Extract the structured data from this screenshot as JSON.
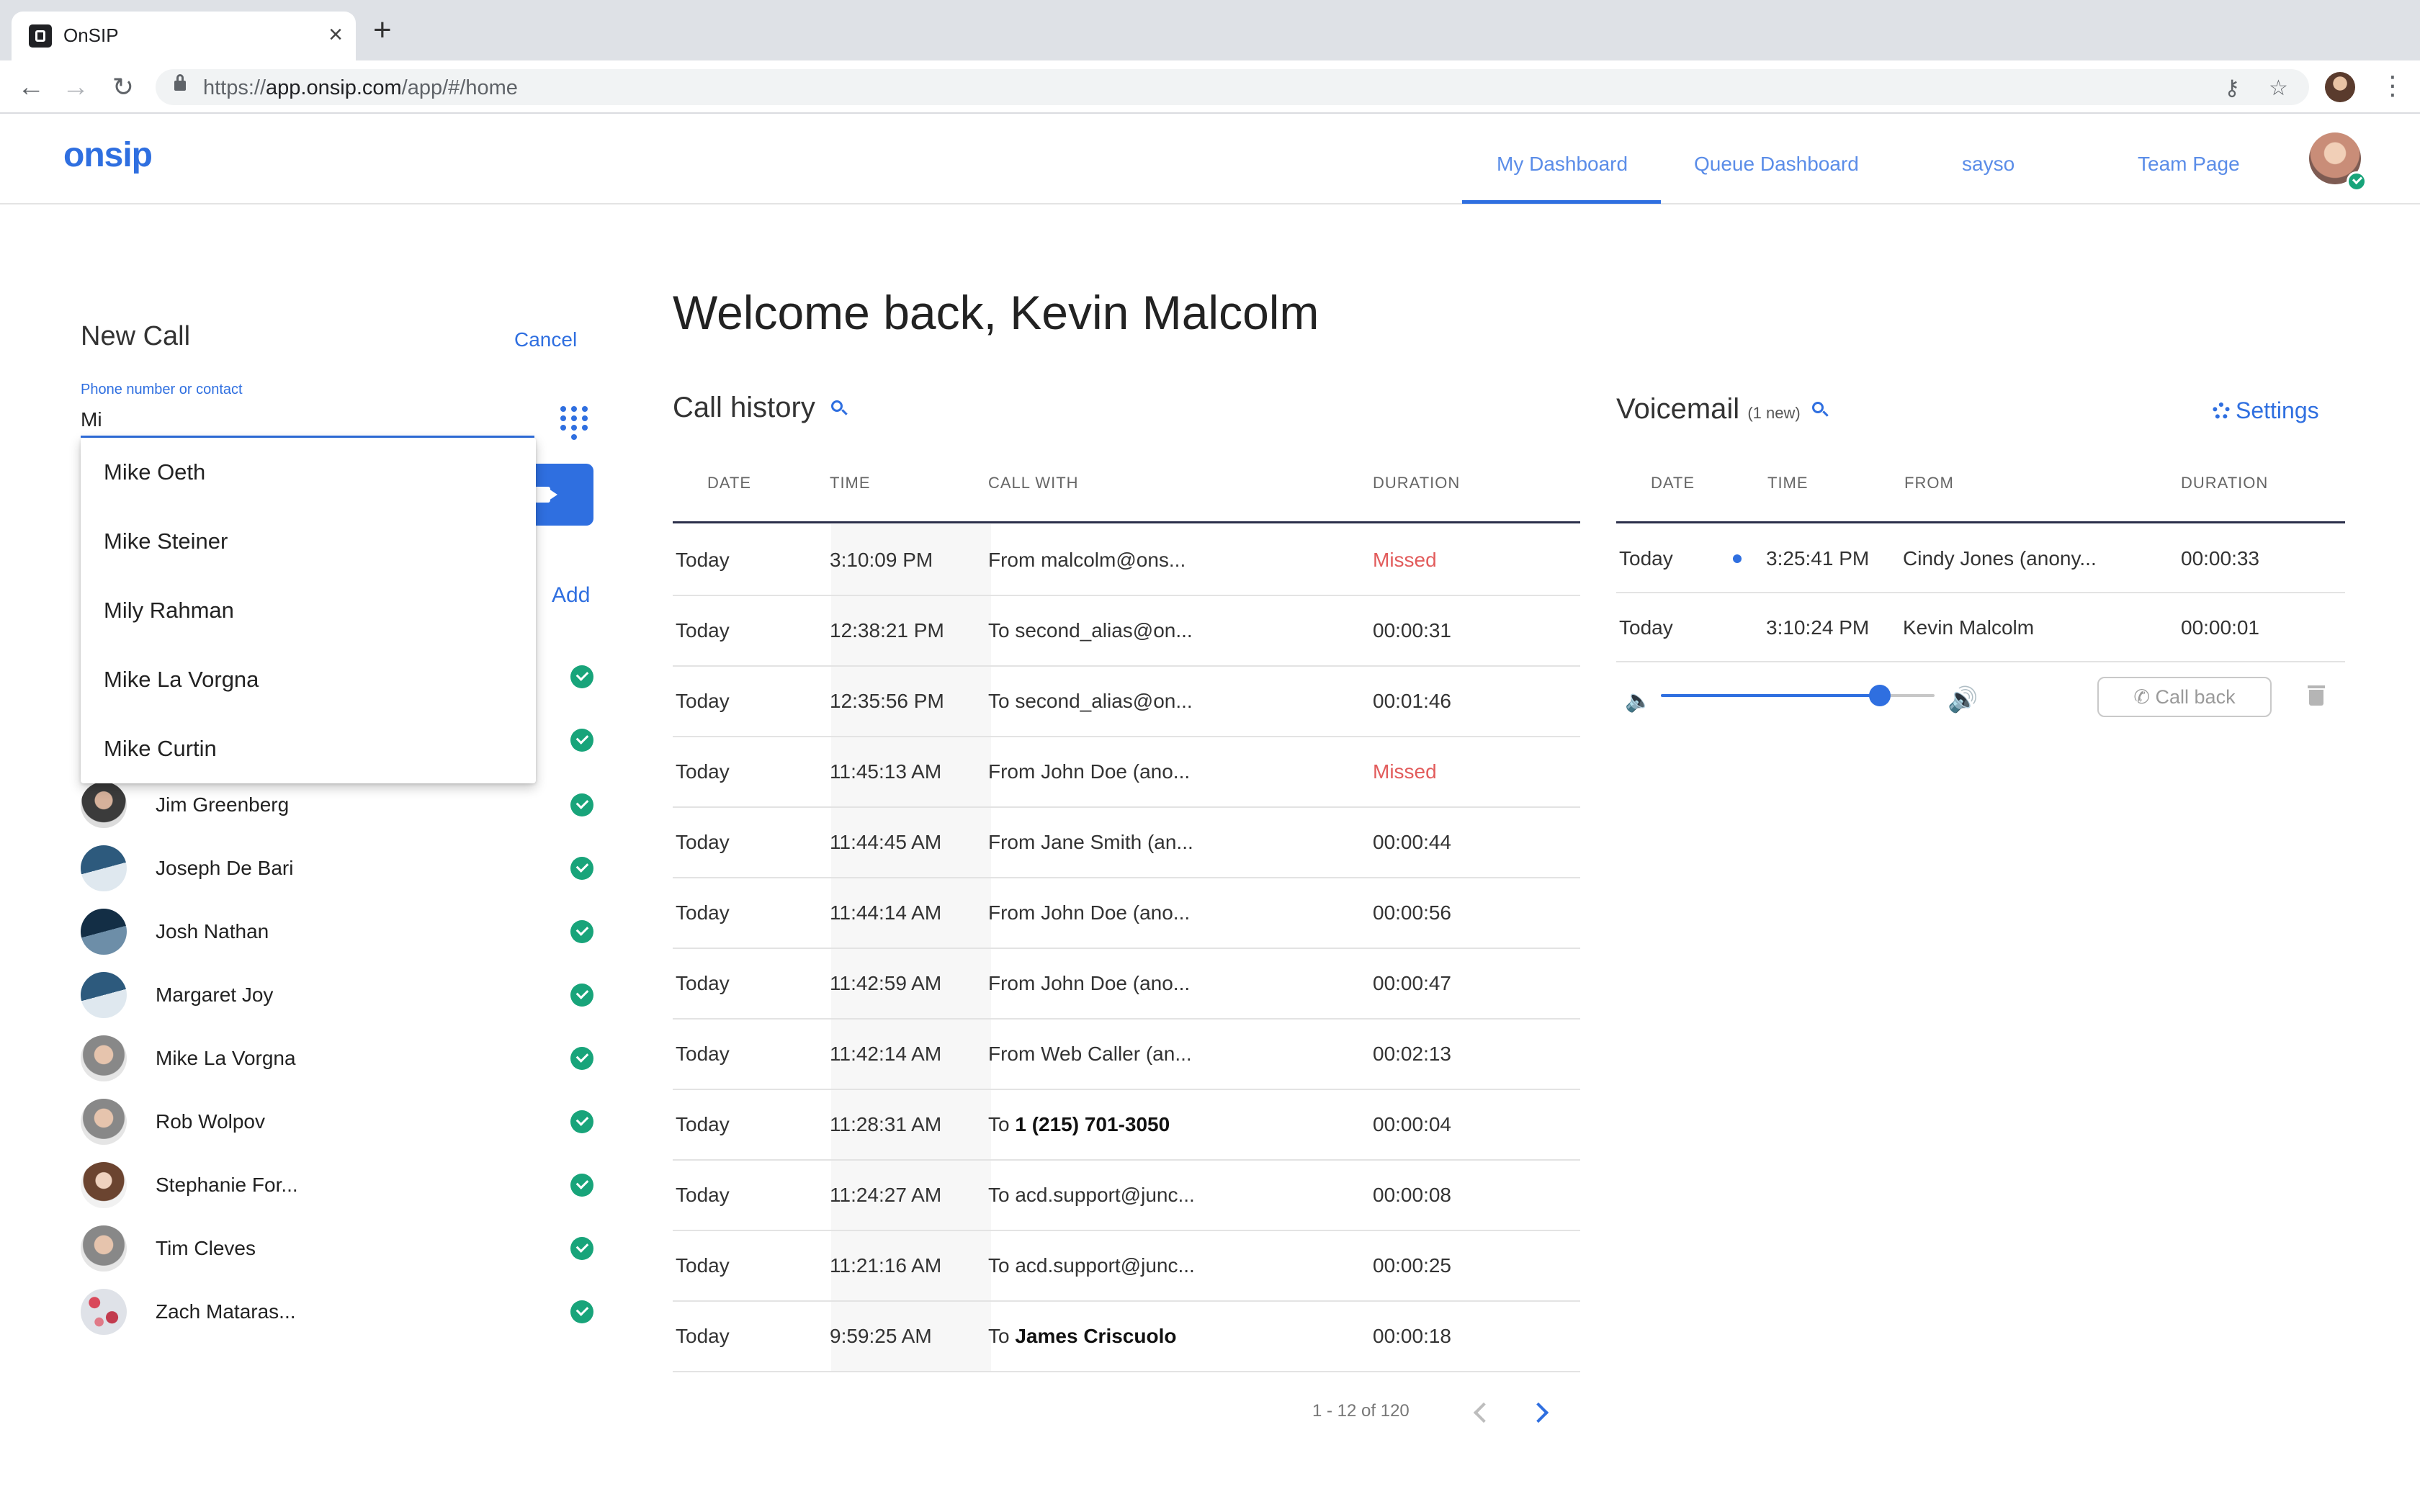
{
  "browser": {
    "tab_title": "OnSIP",
    "tab_close": "×",
    "new_tab": "+",
    "url_scheme": "https://",
    "url_host": "app.onsip.com",
    "url_path": "/app/#/home"
  },
  "header": {
    "logo": "onsip",
    "nav": [
      {
        "label": "My Dashboard",
        "active": true
      },
      {
        "label": "Queue Dashboard",
        "active": false
      },
      {
        "label": "sayso",
        "active": false
      },
      {
        "label": "Team Page",
        "active": false
      }
    ]
  },
  "new_call": {
    "title": "New Call",
    "cancel": "Cancel",
    "field_label": "Phone number or contact",
    "field_value": "Mi",
    "add": "Add",
    "suggestions": [
      "Mike Oeth",
      "Mike Steiner",
      "Mily Rahman",
      "Mike La Vorgna",
      "Mike Curtin"
    ]
  },
  "contacts": [
    {
      "name": "Jim Greenberg",
      "avatar": "photo-dark"
    },
    {
      "name": "Joseph De Bari",
      "avatar": "gen-1"
    },
    {
      "name": "Josh Nathan",
      "avatar": "gen-2"
    },
    {
      "name": "Margaret Joy",
      "avatar": "gen-1"
    },
    {
      "name": "Mike La Vorgna",
      "avatar": "photo-light"
    },
    {
      "name": "Rob Wolpov",
      "avatar": "photo-light"
    },
    {
      "name": "Stephanie For...",
      "avatar": "photo-woman"
    },
    {
      "name": "Tim Cleves",
      "avatar": "photo-light"
    },
    {
      "name": "Zach Mataras...",
      "avatar": "floral"
    }
  ],
  "main": {
    "welcome": "Welcome back, Kevin Malcolm"
  },
  "call_history": {
    "title": "Call history",
    "columns": [
      "DATE",
      "TIME",
      "CALL WITH",
      "DURATION"
    ],
    "rows": [
      {
        "date": "Today",
        "time": "3:10:09 PM",
        "prefix": "From malcolm@ons...",
        "bold": "",
        "duration": "Missed",
        "missed": true
      },
      {
        "date": "Today",
        "time": "12:38:21 PM",
        "prefix": "To second_alias@on...",
        "bold": "",
        "duration": "00:00:31",
        "missed": false
      },
      {
        "date": "Today",
        "time": "12:35:56 PM",
        "prefix": "To second_alias@on...",
        "bold": "",
        "duration": "00:01:46",
        "missed": false
      },
      {
        "date": "Today",
        "time": "11:45:13 AM",
        "prefix": "From John Doe (ano...",
        "bold": "",
        "duration": "Missed",
        "missed": true
      },
      {
        "date": "Today",
        "time": "11:44:45 AM",
        "prefix": "From Jane Smith (an...",
        "bold": "",
        "duration": "00:00:44",
        "missed": false
      },
      {
        "date": "Today",
        "time": "11:44:14 AM",
        "prefix": "From John Doe (ano...",
        "bold": "",
        "duration": "00:00:56",
        "missed": false
      },
      {
        "date": "Today",
        "time": "11:42:59 AM",
        "prefix": "From John Doe (ano...",
        "bold": "",
        "duration": "00:00:47",
        "missed": false
      },
      {
        "date": "Today",
        "time": "11:42:14 AM",
        "prefix": "From Web Caller (an...",
        "bold": "",
        "duration": "00:02:13",
        "missed": false
      },
      {
        "date": "Today",
        "time": "11:28:31 AM",
        "prefix": "To ",
        "bold": "1 (215) 701-3050",
        "duration": "00:00:04",
        "missed": false
      },
      {
        "date": "Today",
        "time": "11:24:27 AM",
        "prefix": "To acd.support@junc...",
        "bold": "",
        "duration": "00:00:08",
        "missed": false
      },
      {
        "date": "Today",
        "time": "11:21:16 AM",
        "prefix": "To acd.support@junc...",
        "bold": "",
        "duration": "00:00:25",
        "missed": false
      },
      {
        "date": "Today",
        "time": "9:59:25 AM",
        "prefix": "To ",
        "bold": "James Criscuolo",
        "duration": "00:00:18",
        "missed": false
      }
    ],
    "pager": "1 - 12 of 120"
  },
  "voicemail": {
    "title": "Voicemail",
    "new_count": "(1 new)",
    "settings": "Settings",
    "columns": [
      "DATE",
      "TIME",
      "FROM",
      "DURATION"
    ],
    "rows": [
      {
        "date": "Today",
        "time": "3:25:41 PM",
        "from": "Cindy Jones (anony...",
        "duration": "00:00:33",
        "unread": true
      },
      {
        "date": "Today",
        "time": "3:10:24 PM",
        "from": "Kevin Malcolm",
        "duration": "00:00:01",
        "unread": false
      }
    ],
    "volume_fraction": 0.8,
    "call_back": "Call back"
  },
  "colors": {
    "accent": "#2f6fe0",
    "online": "#18a47a",
    "missed": "#e25c5c"
  }
}
